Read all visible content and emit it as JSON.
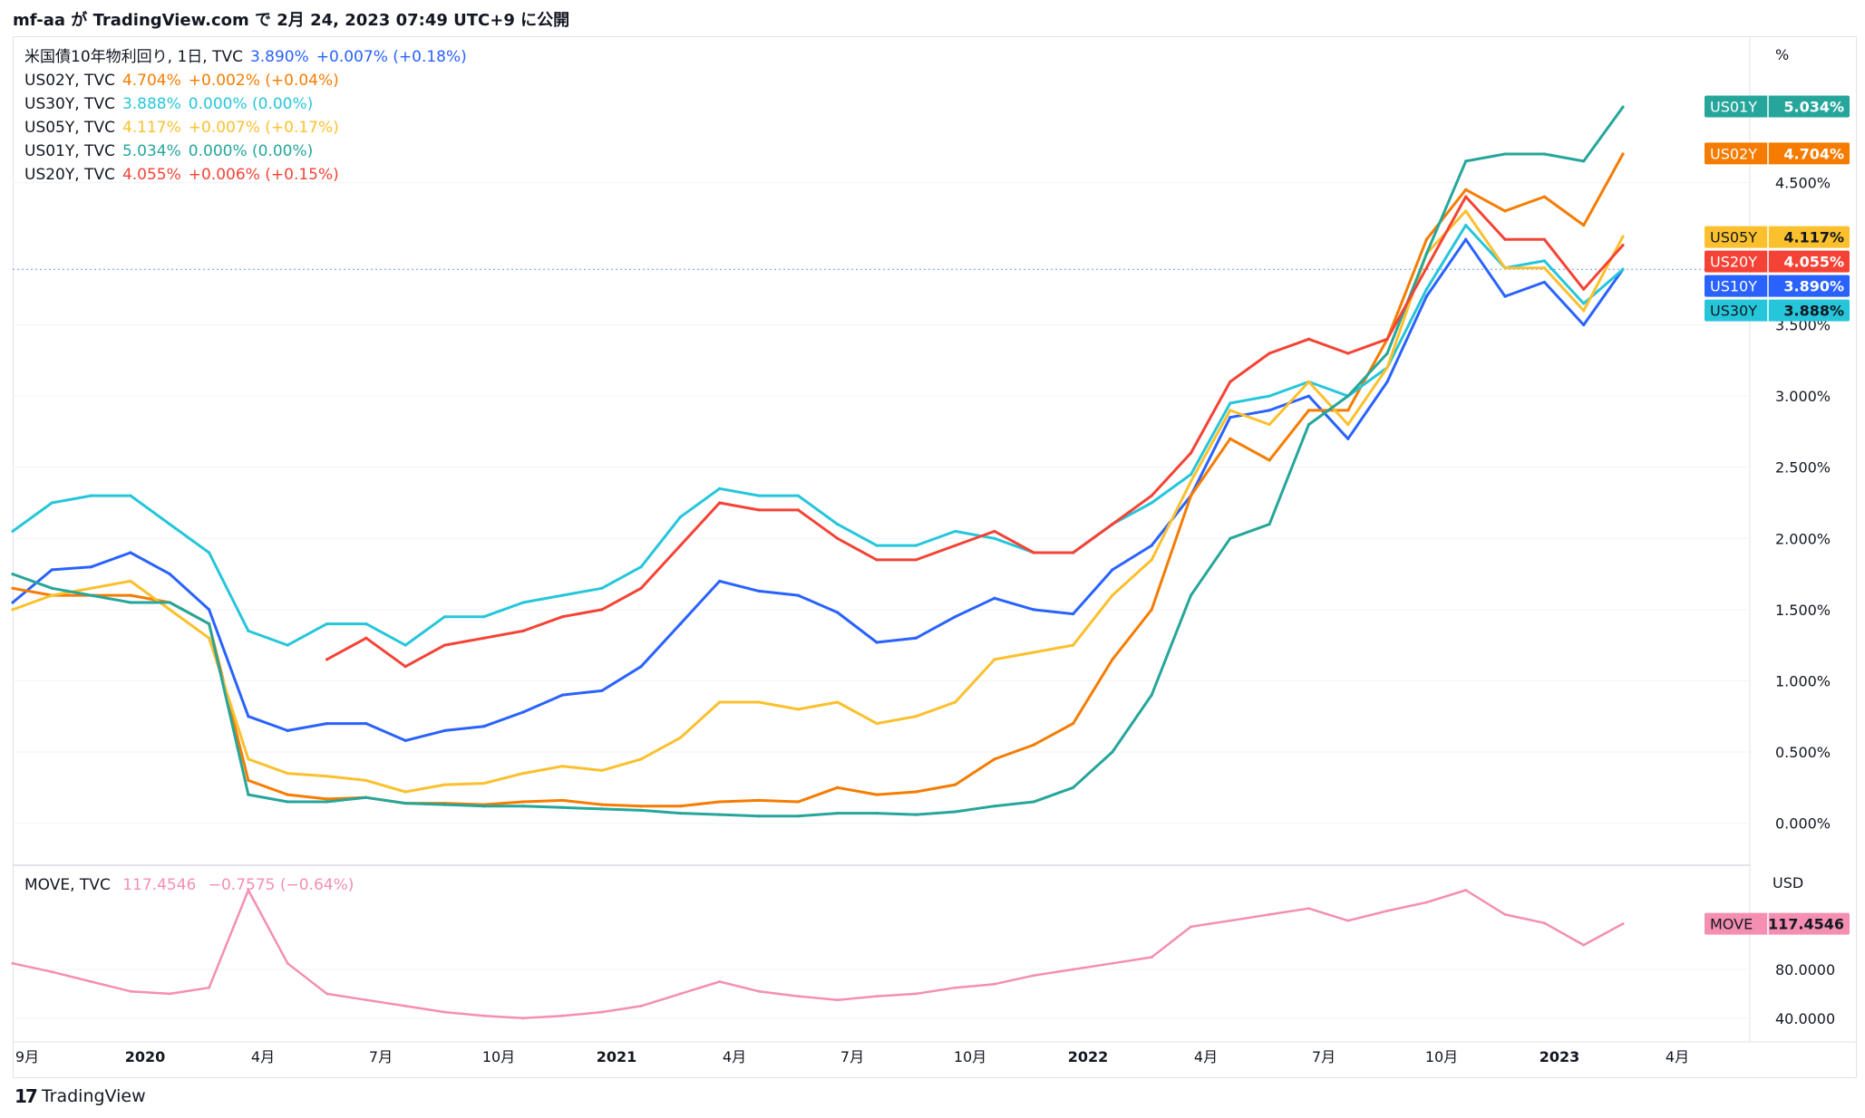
{
  "header": {
    "publish_text": "mf-aa が TradingView.com で 2月 24, 2023 07:49 UTC+9 に公開"
  },
  "footer": {
    "brand": "TradingView",
    "logo_mark": "17"
  },
  "main_pane": {
    "unit_label": "%",
    "legend": [
      {
        "symbol": "米国債10年物利回り, 1日, TVC",
        "value": "3.890%",
        "change": "+0.007% (+0.18%)",
        "color": "#2962ff"
      },
      {
        "symbol": "US02Y, TVC",
        "value": "4.704%",
        "change": "+0.002% (+0.04%)",
        "color": "#f57c00"
      },
      {
        "symbol": "US30Y, TVC",
        "value": "3.888%",
        "change": "0.000% (0.00%)",
        "color": "#26c6da"
      },
      {
        "symbol": "US05Y, TVC",
        "value": "4.117%",
        "change": "+0.007% (+0.17%)",
        "color": "#fbc02d"
      },
      {
        "symbol": "US01Y, TVC",
        "value": "5.034%",
        "change": "0.000% (0.00%)",
        "color": "#26a69a"
      },
      {
        "symbol": "US20Y, TVC",
        "value": "4.055%",
        "change": "+0.006% (+0.15%)",
        "color": "#f44336"
      }
    ],
    "axis_ticks": [
      "4.500%",
      "3.500%",
      "3.000%",
      "2.500%",
      "2.000%",
      "1.500%",
      "1.000%",
      "0.500%",
      "0.000%"
    ],
    "price_tags": [
      {
        "name": "US01Y",
        "value": "5.034%",
        "color": "#26a69a",
        "text_color": "#ffffff"
      },
      {
        "name": "US02Y",
        "value": "4.704%",
        "color": "#f57c00",
        "text_color": "#ffffff"
      },
      {
        "name": "US05Y",
        "value": "4.117%",
        "color": "#fbc02d",
        "text_color": "#131722"
      },
      {
        "name": "US20Y",
        "value": "4.055%",
        "color": "#f44336",
        "text_color": "#ffffff"
      },
      {
        "name": "US10Y",
        "value": "3.890%",
        "color": "#2962ff",
        "text_color": "#ffffff"
      },
      {
        "name": "US30Y",
        "value": "3.888%",
        "color": "#26c6da",
        "text_color": "#131722"
      }
    ]
  },
  "move_pane": {
    "unit_label": "USD",
    "legend": {
      "symbol": "MOVE, TVC",
      "value": "117.4546",
      "change": "−0.7575 (−0.64%)",
      "color": "#f48fb1"
    },
    "axis_ticks": [
      "80.0000",
      "40.0000"
    ],
    "price_tag": {
      "name": "MOVE",
      "value": "117.4546",
      "color": "#f48fb1",
      "text_color": "#131722"
    }
  },
  "time_axis": [
    "9月",
    "2020",
    "4月",
    "7月",
    "10月",
    "2021",
    "4月",
    "7月",
    "10月",
    "2022",
    "4月",
    "7月",
    "10月",
    "2023",
    "4月"
  ],
  "chart_data": [
    {
      "type": "line",
      "ylabel": "%",
      "ylim": [
        -0.2,
        5.4
      ],
      "x": [
        "2019-09",
        "2019-10",
        "2019-11",
        "2019-12",
        "2020-01",
        "2020-02",
        "2020-03",
        "2020-04",
        "2020-05",
        "2020-06",
        "2020-07",
        "2020-08",
        "2020-09",
        "2020-10",
        "2020-11",
        "2020-12",
        "2021-01",
        "2021-02",
        "2021-03",
        "2021-04",
        "2021-05",
        "2021-06",
        "2021-07",
        "2021-08",
        "2021-09",
        "2021-10",
        "2021-11",
        "2021-12",
        "2022-01",
        "2022-02",
        "2022-03",
        "2022-04",
        "2022-05",
        "2022-06",
        "2022-07",
        "2022-08",
        "2022-09",
        "2022-10",
        "2022-11",
        "2022-12",
        "2023-01",
        "2023-02"
      ],
      "series": [
        {
          "name": "US10Y",
          "color": "#2962ff",
          "values": [
            1.55,
            1.78,
            1.8,
            1.9,
            1.75,
            1.5,
            0.75,
            0.65,
            0.7,
            0.7,
            0.58,
            0.65,
            0.68,
            0.78,
            0.9,
            0.93,
            1.1,
            1.4,
            1.7,
            1.63,
            1.6,
            1.48,
            1.27,
            1.3,
            1.45,
            1.58,
            1.5,
            1.47,
            1.78,
            1.95,
            2.3,
            2.85,
            2.9,
            3.0,
            2.7,
            3.1,
            3.7,
            4.1,
            3.7,
            3.8,
            3.5,
            3.89
          ]
        },
        {
          "name": "US02Y",
          "color": "#f57c00",
          "values": [
            1.65,
            1.6,
            1.6,
            1.6,
            1.55,
            1.4,
            0.3,
            0.2,
            0.17,
            0.18,
            0.14,
            0.14,
            0.13,
            0.15,
            0.16,
            0.13,
            0.12,
            0.12,
            0.15,
            0.16,
            0.15,
            0.25,
            0.2,
            0.22,
            0.27,
            0.45,
            0.55,
            0.7,
            1.15,
            1.5,
            2.3,
            2.7,
            2.55,
            2.9,
            2.9,
            3.4,
            4.1,
            4.45,
            4.3,
            4.4,
            4.2,
            4.7
          ]
        },
        {
          "name": "US30Y",
          "color": "#26c6da",
          "values": [
            2.05,
            2.25,
            2.3,
            2.3,
            2.1,
            1.9,
            1.35,
            1.25,
            1.4,
            1.4,
            1.25,
            1.45,
            1.45,
            1.55,
            1.6,
            1.65,
            1.8,
            2.15,
            2.35,
            2.3,
            2.3,
            2.1,
            1.95,
            1.95,
            2.05,
            2.0,
            1.9,
            1.9,
            2.1,
            2.25,
            2.45,
            2.95,
            3.0,
            3.1,
            3.0,
            3.2,
            3.75,
            4.2,
            3.9,
            3.95,
            3.65,
            3.89
          ]
        },
        {
          "name": "US05Y",
          "color": "#fbc02d",
          "values": [
            1.5,
            1.6,
            1.65,
            1.7,
            1.5,
            1.3,
            0.45,
            0.35,
            0.33,
            0.3,
            0.22,
            0.27,
            0.28,
            0.35,
            0.4,
            0.37,
            0.45,
            0.6,
            0.85,
            0.85,
            0.8,
            0.85,
            0.7,
            0.75,
            0.85,
            1.15,
            1.2,
            1.25,
            1.6,
            1.85,
            2.4,
            2.9,
            2.8,
            3.1,
            2.8,
            3.2,
            4.0,
            4.3,
            3.9,
            3.9,
            3.6,
            4.12
          ]
        },
        {
          "name": "US01Y",
          "color": "#26a69a",
          "values": [
            1.75,
            1.65,
            1.6,
            1.55,
            1.55,
            1.4,
            0.2,
            0.15,
            0.15,
            0.18,
            0.14,
            0.13,
            0.12,
            0.12,
            0.11,
            0.1,
            0.09,
            0.07,
            0.06,
            0.05,
            0.05,
            0.07,
            0.07,
            0.06,
            0.08,
            0.12,
            0.15,
            0.25,
            0.5,
            0.9,
            1.6,
            2.0,
            2.1,
            2.8,
            3.0,
            3.3,
            4.0,
            4.65,
            4.7,
            4.7,
            4.65,
            5.03
          ]
        },
        {
          "name": "US20Y",
          "color": "#f44336",
          "values": [
            null,
            null,
            null,
            null,
            null,
            null,
            null,
            null,
            1.15,
            1.3,
            1.1,
            1.25,
            1.3,
            1.35,
            1.45,
            1.5,
            1.65,
            1.95,
            2.25,
            2.2,
            2.2,
            2.0,
            1.85,
            1.85,
            1.95,
            2.05,
            1.9,
            1.9,
            2.1,
            2.3,
            2.6,
            3.1,
            3.3,
            3.4,
            3.3,
            3.4,
            3.9,
            4.4,
            4.1,
            4.1,
            3.75,
            4.06
          ]
        }
      ]
    },
    {
      "type": "line",
      "ylabel": "USD",
      "ylim": [
        28,
        158
      ],
      "x": [
        "2019-09",
        "2019-10",
        "2019-11",
        "2019-12",
        "2020-01",
        "2020-02",
        "2020-03",
        "2020-04",
        "2020-05",
        "2020-06",
        "2020-07",
        "2020-08",
        "2020-09",
        "2020-10",
        "2020-11",
        "2020-12",
        "2021-01",
        "2021-02",
        "2021-03",
        "2021-04",
        "2021-05",
        "2021-06",
        "2021-07",
        "2021-08",
        "2021-09",
        "2021-10",
        "2021-11",
        "2021-12",
        "2022-01",
        "2022-02",
        "2022-03",
        "2022-04",
        "2022-05",
        "2022-06",
        "2022-07",
        "2022-08",
        "2022-09",
        "2022-10",
        "2022-11",
        "2022-12",
        "2023-01",
        "2023-02"
      ],
      "series": [
        {
          "name": "MOVE",
          "color": "#f48fb1",
          "values": [
            85,
            78,
            70,
            62,
            60,
            65,
            145,
            85,
            60,
            55,
            50,
            45,
            42,
            40,
            42,
            45,
            50,
            60,
            70,
            62,
            58,
            55,
            58,
            60,
            65,
            68,
            75,
            80,
            85,
            90,
            115,
            120,
            125,
            130,
            120,
            128,
            135,
            145,
            125,
            118,
            100,
            117.45
          ]
        }
      ]
    }
  ]
}
